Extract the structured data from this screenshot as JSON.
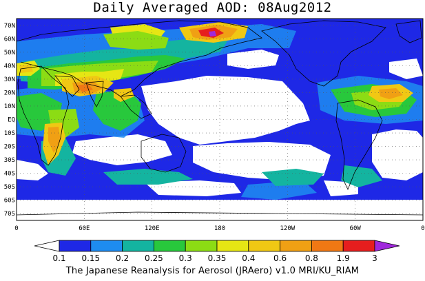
{
  "title": "Daily Averaged AOD: 08Aug2012",
  "credit": "The Japanese Reanalysis for Aerosol (JRAero) v1.0 MRI/KU_RIAM",
  "map": {
    "projection": "equirectangular",
    "lon_range": [
      0,
      360
    ],
    "lat_range": [
      -75,
      75
    ],
    "lat_ticks": [
      "70N",
      "60N",
      "50N",
      "40N",
      "30N",
      "20N",
      "10N",
      "EQ",
      "10S",
      "20S",
      "30S",
      "40S",
      "50S",
      "60S",
      "70S"
    ],
    "lon_ticks": [
      "0",
      "60E",
      "120E",
      "180",
      "120W",
      "60W",
      "0"
    ],
    "grid": "dotted",
    "frame_color": "#000000"
  },
  "colorbar": {
    "labels": [
      "0.1",
      "0.15",
      "0.2",
      "0.25",
      "0.3",
      "0.35",
      "0.4",
      "0.6",
      "0.8",
      "1.9",
      "3"
    ],
    "colors": [
      "#ffffff",
      "#1e28e6",
      "#1e8cf0",
      "#14b4a0",
      "#28c83c",
      "#8cdc14",
      "#e6e614",
      "#f0c814",
      "#f0a014",
      "#f07814",
      "#e61e1e",
      "#a028dc"
    ]
  }
}
